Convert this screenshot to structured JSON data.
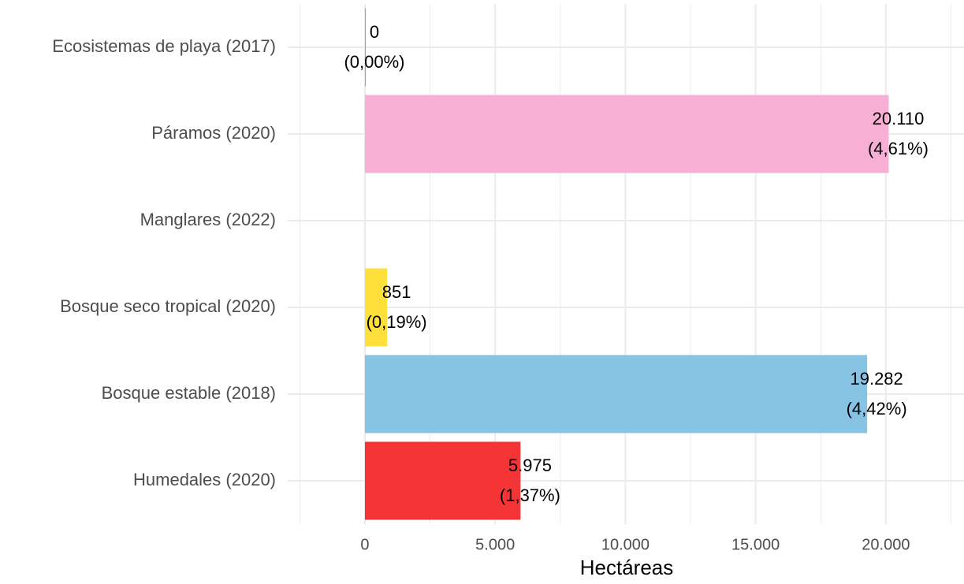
{
  "chart_data": {
    "type": "bar",
    "orientation": "horizontal",
    "categories": [
      "Ecosistemas de playa (2017)",
      "Páramos (2020)",
      "Manglares (2022)",
      "Bosque seco tropical (2020)",
      "Bosque estable (2018)",
      "Humedales (2020)"
    ],
    "values": [
      0,
      20110,
      null,
      851,
      19282,
      5975
    ],
    "value_labels": [
      "0",
      "20.110",
      null,
      "851",
      "19.282",
      "5.975"
    ],
    "share_labels": [
      "(0,00%)",
      "(4,61%)",
      null,
      "(0,19%)",
      "(4,42%)",
      "(1,37%)"
    ],
    "colors": [
      "#7cc242",
      "#f7afd4",
      "#4daf4a",
      "#fde03a",
      "#87c3e3",
      "#f53535"
    ],
    "x_label": "Hectáreas",
    "xlim": [
      -2965,
      23000
    ],
    "xticks": [
      0,
      {
        "value": 5000,
        "label": "5.000"
      },
      {
        "value": 10000,
        "label": "10.000"
      },
      {
        "value": 15000,
        "label": "15.000"
      },
      {
        "value": 20000,
        "label": "20.000"
      }
    ],
    "grid": true
  }
}
